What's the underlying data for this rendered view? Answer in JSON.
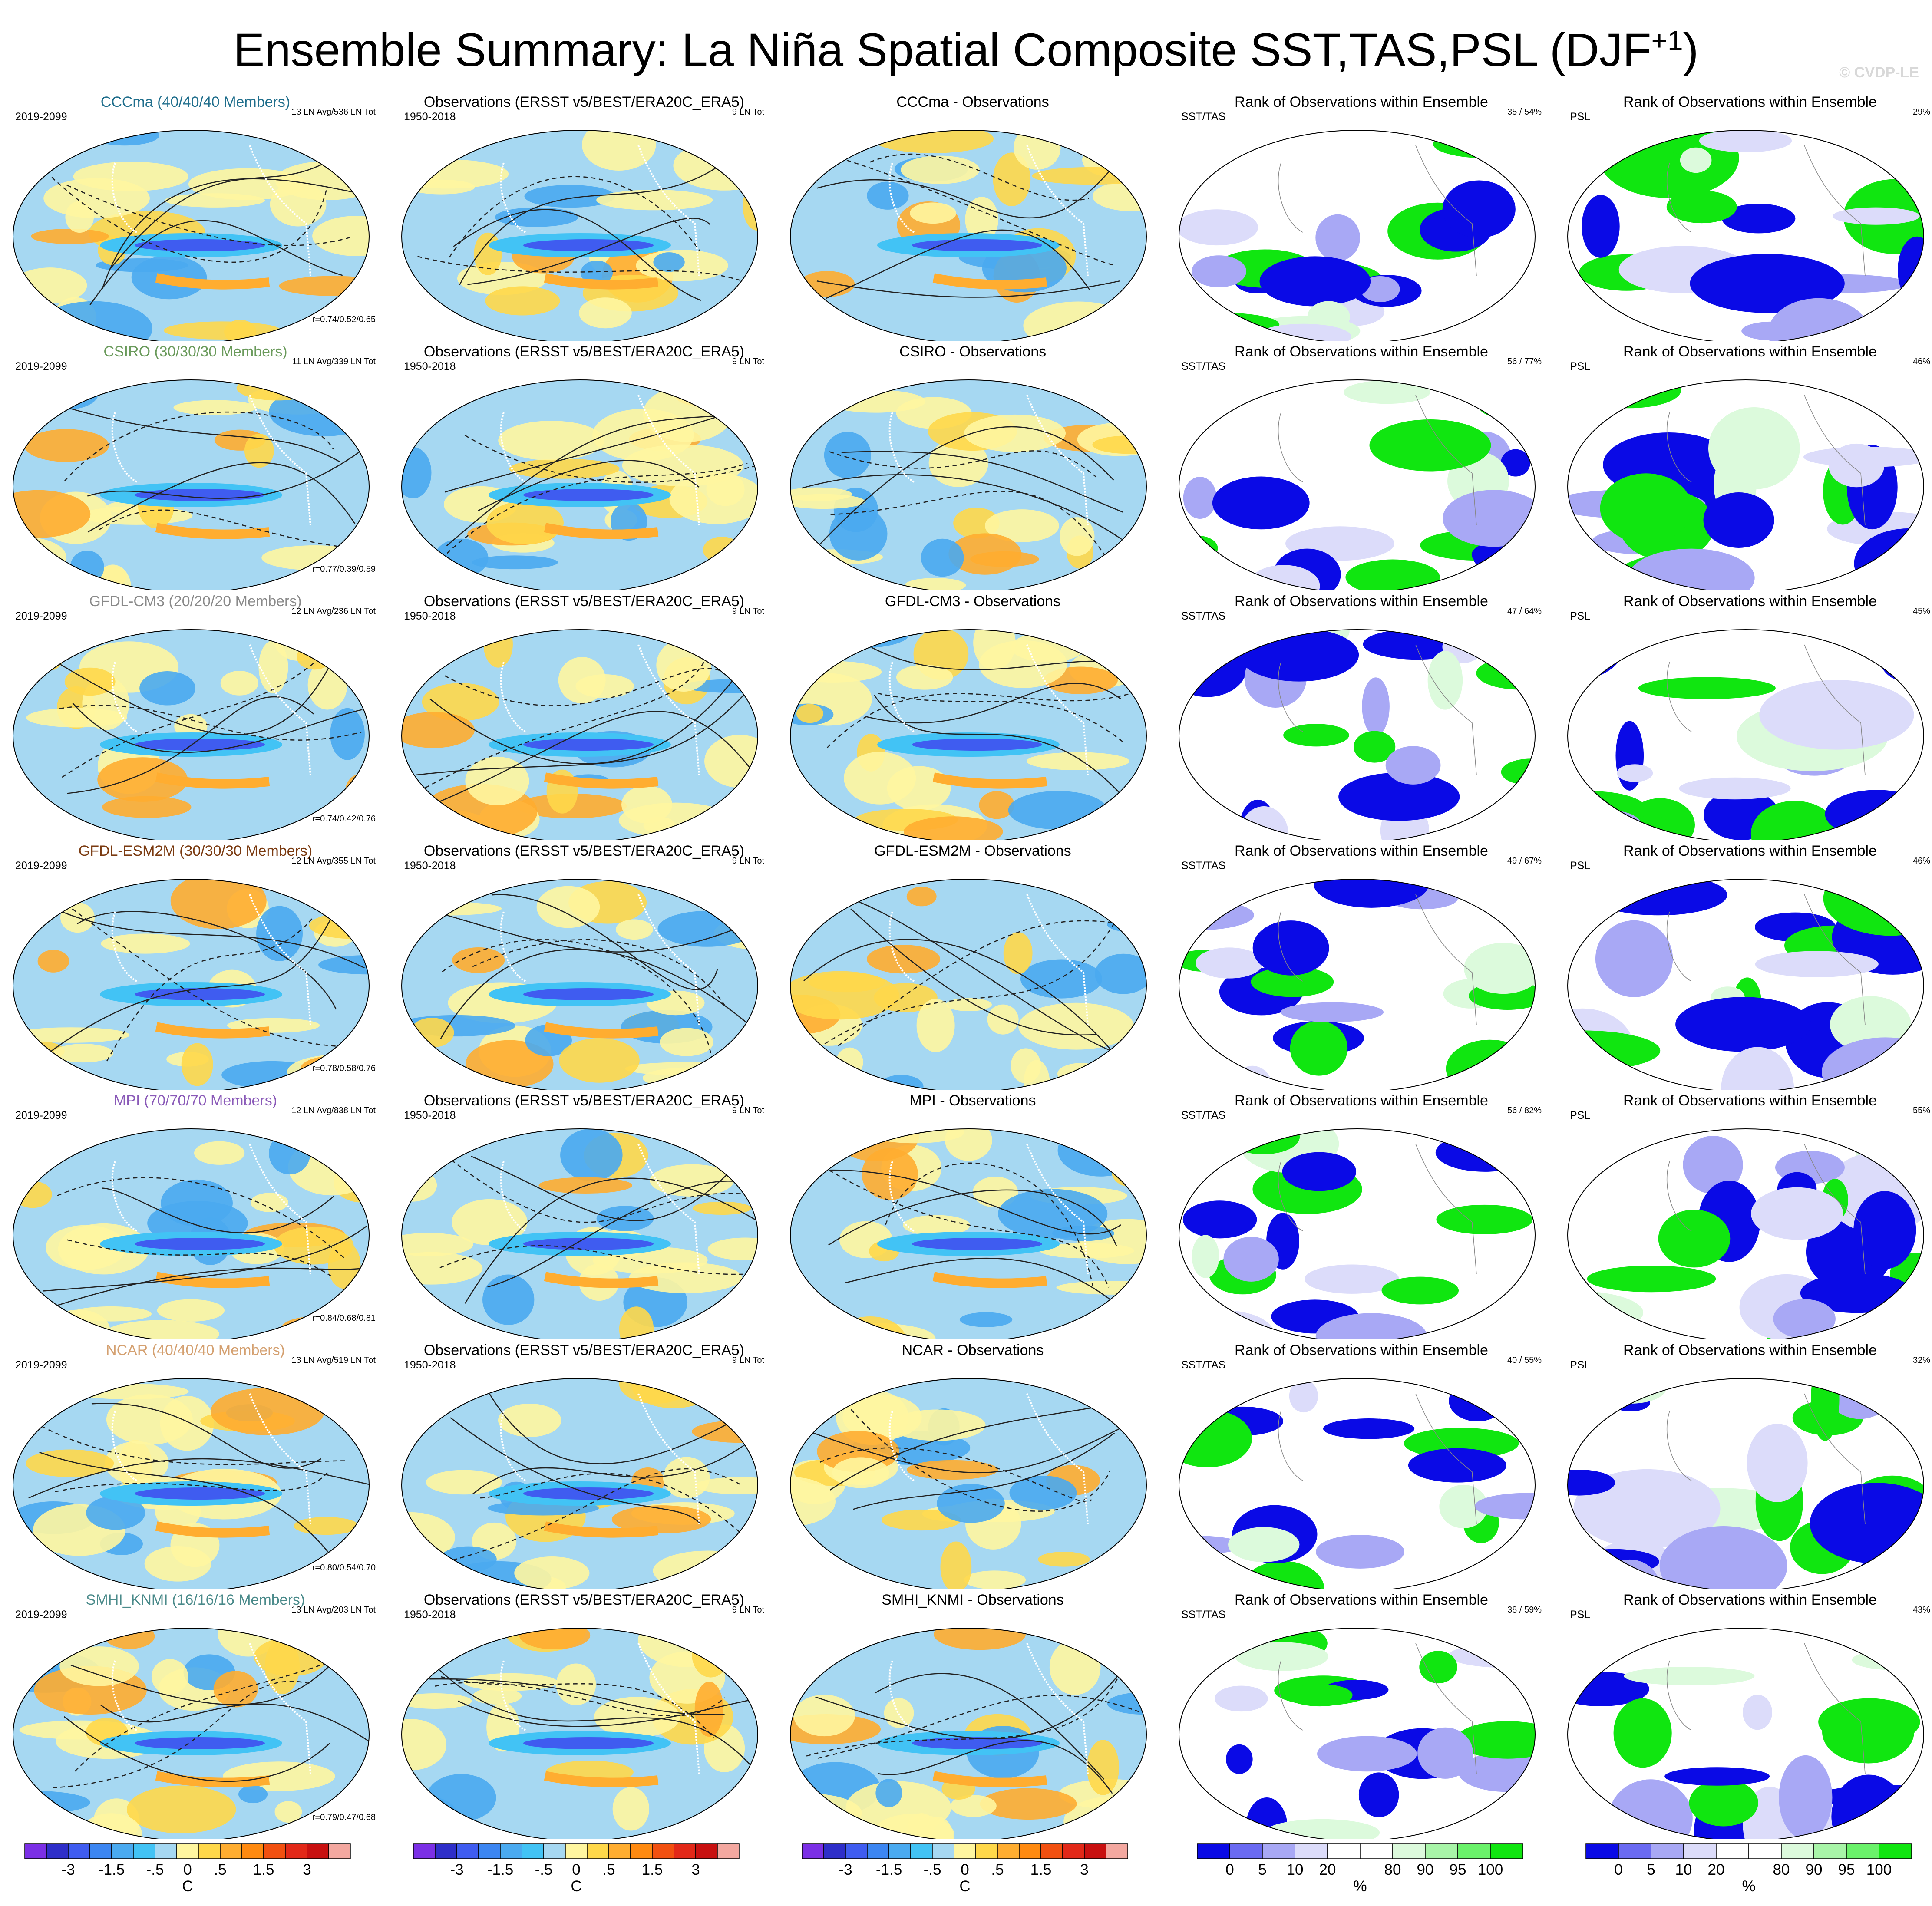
{
  "title": {
    "main": "Ensemble Summary: La Niña Spatial Composite SST,TAS,PSL (DJF",
    "sup": "+1",
    "close": ")"
  },
  "watermark": "© CVDP-LE",
  "rank_title": "Rank of Observations within Ensemble",
  "obs_title": "Observations (ERSST v5/BEST/ERA20C_ERA5)",
  "model_period": "2019-2099",
  "obs_period": "1950-2018",
  "obs_count": "9 LN Tot",
  "sst_tas_label": "SST/TAS",
  "psl_label": "PSL",
  "rows": [
    {
      "model_title": "CCCma (40/40/40 Members)",
      "color": "#1f6e8c",
      "counts": "13 LN Avg/536 LN Tot",
      "corr": "r=0.74/0.52/0.65",
      "diff_title": "CCCma - Observations",
      "rank_sst": "35 /  54%",
      "rank_psl": "29%"
    },
    {
      "model_title": "CSIRO (30/30/30 Members)",
      "color": "#6a9a5b",
      "counts": "11 LN Avg/339 LN Tot",
      "corr": "r=0.77/0.39/0.59",
      "diff_title": "CSIRO - Observations",
      "rank_sst": "56 /  77%",
      "rank_psl": "46%"
    },
    {
      "model_title": "GFDL-CM3 (20/20/20 Members)",
      "color": "#8a8a8a",
      "counts": "12 LN Avg/236 LN Tot",
      "corr": "r=0.74/0.42/0.76",
      "diff_title": "GFDL-CM3 - Observations",
      "rank_sst": "47 /  64%",
      "rank_psl": "45%"
    },
    {
      "model_title": "GFDL-ESM2M (30/30/30 Members)",
      "color": "#7a3a10",
      "counts": "12 LN Avg/355 LN Tot",
      "corr": "r=0.78/0.58/0.76",
      "diff_title": "GFDL-ESM2M - Observations",
      "rank_sst": "49 /  67%",
      "rank_psl": "46%"
    },
    {
      "model_title": "MPI (70/70/70 Members)",
      "color": "#8a5ab8",
      "counts": "12 LN Avg/838 LN Tot",
      "corr": "r=0.84/0.68/0.81",
      "diff_title": "MPI - Observations",
      "rank_sst": "56 /  82%",
      "rank_psl": "55%"
    },
    {
      "model_title": "NCAR (40/40/40 Members)",
      "color": "#d4a070",
      "counts": "13 LN Avg/519 LN Tot",
      "corr": "r=0.80/0.54/0.70",
      "diff_title": "NCAR - Observations",
      "rank_sst": "40 /  55%",
      "rank_psl": "32%"
    },
    {
      "model_title": "SMHI_KNMI (16/16/16 Members)",
      "color": "#4a8a8a",
      "counts": "13 LN Avg/203 LN Tot",
      "corr": "r=0.79/0.47/0.68",
      "diff_title": "SMHI_KNMI - Observations",
      "rank_sst": "38 /  59%",
      "rank_psl": "43%"
    }
  ],
  "temp_colorbar": {
    "colors": [
      "#7b2fe6",
      "#2e2ec9",
      "#3f5cf0",
      "#3c86f2",
      "#4aaaf0",
      "#42c3f5",
      "#a6d8f2",
      "#fff6a0",
      "#ffd84a",
      "#ffad30",
      "#ff8a10",
      "#f25010",
      "#e22818",
      "#c81010",
      "#f4a8a0"
    ],
    "tick_labels": [
      "-3",
      "-1.5",
      "-.5",
      "0",
      ".5",
      "1.5",
      "3"
    ],
    "units": "C"
  },
  "rank_colorbar": {
    "colors": [
      "#0a0ae6",
      "#6a6af2",
      "#a8a8f5",
      "#dcdcfa",
      "#ffffff",
      "#ffffff",
      "#dcfadc",
      "#a8f5a8",
      "#6af26a",
      "#10e610"
    ],
    "tick_labels": [
      "0",
      "5",
      "10",
      "20",
      "80",
      "90",
      "95",
      "100"
    ],
    "units": "%"
  }
}
